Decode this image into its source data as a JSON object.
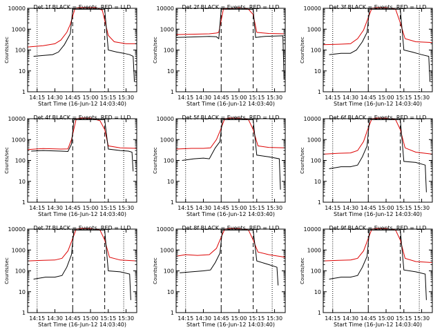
{
  "figure": {
    "start_time_label": "Start Time (16-Jun-12 14:03:40)",
    "y_axis_label": "Counts/sec",
    "legend_text": "BLACK = Events, RED = LLD",
    "colors": {
      "events": "#000000",
      "lld": "#dd0000"
    }
  },
  "chart_data": [
    {
      "type": "line",
      "title": "Det 1f BLACK = Events, RED = LLD",
      "ylabel": "Counts/sec",
      "xlabel": "Start Time (16-Jun-12 14:03:40)",
      "yscale": "log",
      "ylim": [
        1,
        10000
      ],
      "xlim": [
        "14:07",
        "15:39"
      ],
      "x_ticks": [
        "14:15",
        "14:30",
        "14:45",
        "15:00",
        "15:15",
        "15:30"
      ],
      "y_ticks": [
        "1",
        "10",
        "100",
        "1000",
        "10000"
      ],
      "dotted_lines": [
        "14:15",
        "15:28"
      ],
      "dashed_lines": [
        "14:45",
        "15:12"
      ],
      "series": [
        {
          "name": "BLACK = Events",
          "x": [
            "14:12",
            "14:20",
            "14:28",
            "14:33",
            "14:38",
            "14:43",
            "14:45",
            "15:12",
            "15:15",
            "15:22",
            "15:28",
            "15:33",
            "15:36",
            "15:37"
          ],
          "values": [
            50,
            55,
            60,
            80,
            180,
            600,
            9000,
            9000,
            100,
            80,
            70,
            60,
            50,
            3
          ]
        },
        {
          "name": "RED = LLD",
          "x": [
            "14:07",
            "14:20",
            "14:30",
            "14:35",
            "14:40",
            "14:43",
            "14:47",
            "14:50",
            "15:05",
            "15:10",
            "15:15",
            "15:20",
            "15:30",
            "15:39"
          ],
          "values": [
            140,
            160,
            200,
            300,
            700,
            1700,
            10000,
            12000,
            12000,
            8000,
            500,
            250,
            200,
            200
          ]
        }
      ]
    },
    {
      "type": "line",
      "title": "Det 2f BLACK = Events, RED = LLD",
      "ylabel": "Counts/sec",
      "xlabel": "Start Time (16-Jun-12 14:03:40)",
      "yscale": "log",
      "ylim": [
        1,
        10000
      ],
      "xlim": [
        "14:07",
        "15:39"
      ],
      "x_ticks": [
        "14:15",
        "14:30",
        "14:45",
        "15:00",
        "15:15",
        "15:30"
      ],
      "y_ticks": [
        "1",
        "10",
        "100",
        "1000",
        "10000"
      ],
      "dotted_lines": [
        "14:15",
        "15:28"
      ],
      "dashed_lines": [
        "14:45",
        "15:12"
      ],
      "series": [
        {
          "name": "BLACK = Events",
          "x": [
            "14:07",
            "14:20",
            "14:35",
            "14:41",
            "14:43",
            "14:45",
            "15:12",
            "15:14",
            "15:22",
            "15:30",
            "15:37",
            "15:38"
          ],
          "values": [
            400,
            420,
            450,
            430,
            350,
            9000,
            9000,
            400,
            450,
            470,
            480,
            4
          ]
        },
        {
          "name": "RED = LLD",
          "x": [
            "14:07",
            "14:20",
            "14:35",
            "14:41",
            "14:43",
            "14:47",
            "14:52",
            "15:00",
            "15:08",
            "15:12",
            "15:15",
            "15:25",
            "15:39"
          ],
          "values": [
            550,
            570,
            600,
            650,
            700,
            10000,
            9000,
            14000,
            9000,
            5000,
            700,
            620,
            600
          ]
        }
      ]
    },
    {
      "type": "line",
      "title": "Det 3f BLACK = Events, RED = LLD",
      "ylabel": "Counts/sec",
      "xlabel": "Start Time (16-Jun-12 14:03:40)",
      "yscale": "log",
      "ylim": [
        1,
        10000
      ],
      "xlim": [
        "14:07",
        "15:39"
      ],
      "x_ticks": [
        "14:15",
        "14:30",
        "14:45",
        "15:00",
        "15:15",
        "15:30"
      ],
      "y_ticks": [
        "1",
        "10",
        "100",
        "1000",
        "10000"
      ],
      "dotted_lines": [
        "14:15",
        "15:28"
      ],
      "dashed_lines": [
        "14:45",
        "15:12"
      ],
      "series": [
        {
          "name": "BLACK = Events",
          "x": [
            "14:12",
            "14:22",
            "14:30",
            "14:35",
            "14:40",
            "14:44",
            "14:46",
            "15:12",
            "15:15",
            "15:22",
            "15:30",
            "15:36",
            "15:37"
          ],
          "values": [
            60,
            70,
            70,
            100,
            250,
            700,
            9000,
            9000,
            100,
            80,
            60,
            50,
            3
          ]
        },
        {
          "name": "RED = LLD",
          "x": [
            "14:07",
            "14:20",
            "14:30",
            "14:36",
            "14:41",
            "14:44",
            "14:48",
            "14:52",
            "15:00",
            "15:08",
            "15:12",
            "15:16",
            "15:25",
            "15:39"
          ],
          "values": [
            180,
            190,
            200,
            350,
            900,
            2500,
            10000,
            12000,
            14000,
            9000,
            2000,
            350,
            250,
            230
          ]
        }
      ]
    },
    {
      "type": "line",
      "title": "Det 4f BLACK = Events, RED = LLD",
      "ylabel": "Counts/sec",
      "xlabel": "Start Time (16-Jun-12 14:03:40)",
      "yscale": "log",
      "ylim": [
        1,
        10000
      ],
      "xlim": [
        "14:07",
        "15:39"
      ],
      "x_ticks": [
        "14:15",
        "14:30",
        "14:45",
        "15:00",
        "15:15",
        "15:30"
      ],
      "y_ticks": [
        "1",
        "10",
        "100",
        "1000",
        "10000"
      ],
      "dotted_lines": [
        "14:15",
        "15:28"
      ],
      "dashed_lines": [
        "14:45",
        "15:12"
      ],
      "series": [
        {
          "name": "BLACK = Events",
          "x": [
            "14:10",
            "14:20",
            "14:35",
            "14:41",
            "14:44",
            "14:46",
            "15:12",
            "15:15",
            "15:25",
            "15:32",
            "15:35",
            "15:36"
          ],
          "values": [
            280,
            300,
            280,
            270,
            600,
            9000,
            9000,
            350,
            300,
            280,
            250,
            30
          ]
        },
        {
          "name": "RED = LLD",
          "x": [
            "14:07",
            "14:20",
            "14:35",
            "14:41",
            "14:44",
            "14:48",
            "14:52",
            "15:00",
            "15:08",
            "15:12",
            "15:15",
            "15:25",
            "15:39"
          ],
          "values": [
            330,
            370,
            350,
            360,
            1000,
            10000,
            11000,
            14000,
            8000,
            3000,
            500,
            400,
            380
          ]
        }
      ]
    },
    {
      "type": "line",
      "title": "Det 5f BLACK = Events, RED = LLD",
      "ylabel": "Counts/sec",
      "xlabel": "Start Time (16-Jun-12 14:03:40)",
      "yscale": "log",
      "ylim": [
        1,
        10000
      ],
      "xlim": [
        "14:07",
        "15:39"
      ],
      "x_ticks": [
        "14:15",
        "14:30",
        "14:45",
        "15:00",
        "15:15",
        "15:30"
      ],
      "y_ticks": [
        "1",
        "10",
        "100",
        "1000",
        "10000"
      ],
      "dotted_lines": [
        "14:15",
        "15:28"
      ],
      "dashed_lines": [
        "14:45",
        "15:12"
      ],
      "series": [
        {
          "name": "BLACK = Events",
          "x": [
            "14:12",
            "14:22",
            "14:30",
            "14:35",
            "14:40",
            "14:44",
            "14:46",
            "15:12",
            "15:15",
            "15:25",
            "15:34",
            "15:35"
          ],
          "values": [
            100,
            120,
            130,
            120,
            400,
            800,
            9000,
            9000,
            180,
            150,
            120,
            4
          ]
        },
        {
          "name": "RED = LLD",
          "x": [
            "14:07",
            "14:20",
            "14:30",
            "14:36",
            "14:41",
            "14:44",
            "14:48",
            "14:52",
            "15:00",
            "15:08",
            "15:12",
            "15:16",
            "15:25",
            "15:39"
          ],
          "values": [
            350,
            380,
            380,
            400,
            1000,
            2500,
            10000,
            12000,
            14000,
            9000,
            3000,
            500,
            420,
            400
          ]
        }
      ]
    },
    {
      "type": "line",
      "title": "Det 6f BLACK = Events, RED = LLD",
      "ylabel": "Counts/sec",
      "xlabel": "Start Time (16-Jun-12 14:03:40)",
      "yscale": "log",
      "ylim": [
        1,
        10000
      ],
      "xlim": [
        "14:07",
        "15:39"
      ],
      "x_ticks": [
        "14:15",
        "14:30",
        "14:45",
        "15:00",
        "15:15",
        "15:30"
      ],
      "y_ticks": [
        "1",
        "10",
        "100",
        "1000",
        "10000"
      ],
      "dotted_lines": [
        "14:15",
        "15:28"
      ],
      "dashed_lines": [
        "14:45",
        "15:12"
      ],
      "series": [
        {
          "name": "BLACK = Events",
          "x": [
            "14:12",
            "14:22",
            "14:30",
            "14:36",
            "14:40",
            "14:44",
            "14:46",
            "15:12",
            "15:15",
            "15:25",
            "15:33",
            "15:34"
          ],
          "values": [
            40,
            50,
            50,
            60,
            150,
            500,
            9000,
            9000,
            90,
            80,
            60,
            3
          ]
        },
        {
          "name": "RED = LLD",
          "x": [
            "14:07",
            "14:20",
            "14:30",
            "14:36",
            "14:41",
            "14:44",
            "14:48",
            "14:52",
            "15:00",
            "15:08",
            "15:12",
            "15:16",
            "15:25",
            "15:39"
          ],
          "values": [
            200,
            220,
            230,
            300,
            800,
            2500,
            10000,
            12000,
            14000,
            9000,
            3000,
            400,
            250,
            200
          ]
        }
      ]
    },
    {
      "type": "line",
      "title": "Det 7f BLACK = Events, RED = LLD",
      "ylabel": "Counts/sec",
      "xlabel": "Start Time (16-Jun-12 14:03:40)",
      "yscale": "log",
      "ylim": [
        1,
        10000
      ],
      "xlim": [
        "14:07",
        "15:39"
      ],
      "x_ticks": [
        "14:15",
        "14:30",
        "14:45",
        "15:00",
        "15:15",
        "15:30"
      ],
      "y_ticks": [
        "1",
        "10",
        "100",
        "1000",
        "10000"
      ],
      "dotted_lines": [
        "14:15",
        "15:28"
      ],
      "dashed_lines": [
        "14:45",
        "15:12"
      ],
      "series": [
        {
          "name": "BLACK = Events",
          "x": [
            "14:12",
            "14:22",
            "14:30",
            "14:36",
            "14:40",
            "14:44",
            "14:46",
            "15:12",
            "15:15",
            "15:25",
            "15:33",
            "15:34"
          ],
          "values": [
            40,
            50,
            50,
            60,
            150,
            600,
            9000,
            9000,
            100,
            90,
            70,
            4
          ]
        },
        {
          "name": "RED = LLD",
          "x": [
            "14:07",
            "14:20",
            "14:30",
            "14:36",
            "14:41",
            "14:44",
            "14:48",
            "14:52",
            "15:00",
            "15:08",
            "15:12",
            "15:16",
            "15:25",
            "15:39"
          ],
          "values": [
            300,
            320,
            330,
            400,
            900,
            2500,
            10000,
            12000,
            14000,
            9000,
            3000,
            450,
            330,
            300
          ]
        }
      ]
    },
    {
      "type": "line",
      "title": "Det 8f BLACK = Events, RED = LLD",
      "ylabel": "Counts/sec",
      "xlabel": "Start Time (16-Jun-12 14:03:40)",
      "yscale": "log",
      "ylim": [
        1,
        10000
      ],
      "xlim": [
        "14:07",
        "15:39"
      ],
      "x_ticks": [
        "14:15",
        "14:30",
        "14:45",
        "15:00",
        "15:15",
        "15:30"
      ],
      "y_ticks": [
        "1",
        "10",
        "100",
        "1000",
        "10000"
      ],
      "dotted_lines": [
        "14:15",
        "15:28"
      ],
      "dashed_lines": [
        "14:45",
        "15:12"
      ],
      "series": [
        {
          "name": "BLACK = Events",
          "x": [
            "14:10",
            "14:20",
            "14:30",
            "14:36",
            "14:40",
            "14:44",
            "14:46",
            "15:12",
            "15:15",
            "15:25",
            "15:32",
            "15:33"
          ],
          "values": [
            80,
            90,
            100,
            110,
            250,
            700,
            9000,
            9000,
            300,
            200,
            150,
            20
          ]
        },
        {
          "name": "RED = LLD",
          "x": [
            "14:07",
            "14:15",
            "14:25",
            "14:35",
            "14:41",
            "14:44",
            "14:48",
            "14:52",
            "15:00",
            "15:08",
            "15:12",
            "15:16",
            "15:25",
            "15:39"
          ],
          "values": [
            500,
            600,
            550,
            600,
            1200,
            3000,
            10000,
            12000,
            14000,
            9000,
            3000,
            800,
            600,
            450
          ]
        }
      ]
    },
    {
      "type": "line",
      "title": "Det 9f BLACK = Events, RED = LLD",
      "ylabel": "Counts/sec",
      "xlabel": "Start Time (16-Jun-12 14:03:40)",
      "yscale": "log",
      "ylim": [
        1,
        10000
      ],
      "xlim": [
        "14:07",
        "15:39"
      ],
      "x_ticks": [
        "14:15",
        "14:30",
        "14:45",
        "15:00",
        "15:15",
        "15:30"
      ],
      "y_ticks": [
        "1",
        "10",
        "100",
        "1000",
        "10000"
      ],
      "dotted_lines": [
        "14:15",
        "15:28"
      ],
      "dashed_lines": [
        "14:45",
        "15:12"
      ],
      "series": [
        {
          "name": "BLACK = Events",
          "x": [
            "14:12",
            "14:22",
            "14:30",
            "14:36",
            "14:40",
            "14:44",
            "14:46",
            "15:12",
            "15:15",
            "15:25",
            "15:33",
            "15:34"
          ],
          "values": [
            40,
            50,
            50,
            60,
            150,
            500,
            9000,
            9000,
            110,
            90,
            70,
            4
          ]
        },
        {
          "name": "RED = LLD",
          "x": [
            "14:07",
            "14:20",
            "14:30",
            "14:36",
            "14:41",
            "14:44",
            "14:48",
            "14:52",
            "15:00",
            "15:08",
            "15:12",
            "15:16",
            "15:25",
            "15:39"
          ],
          "values": [
            300,
            320,
            330,
            400,
            900,
            2500,
            10000,
            12000,
            14000,
            9000,
            3000,
            400,
            280,
            250
          ]
        }
      ]
    }
  ]
}
